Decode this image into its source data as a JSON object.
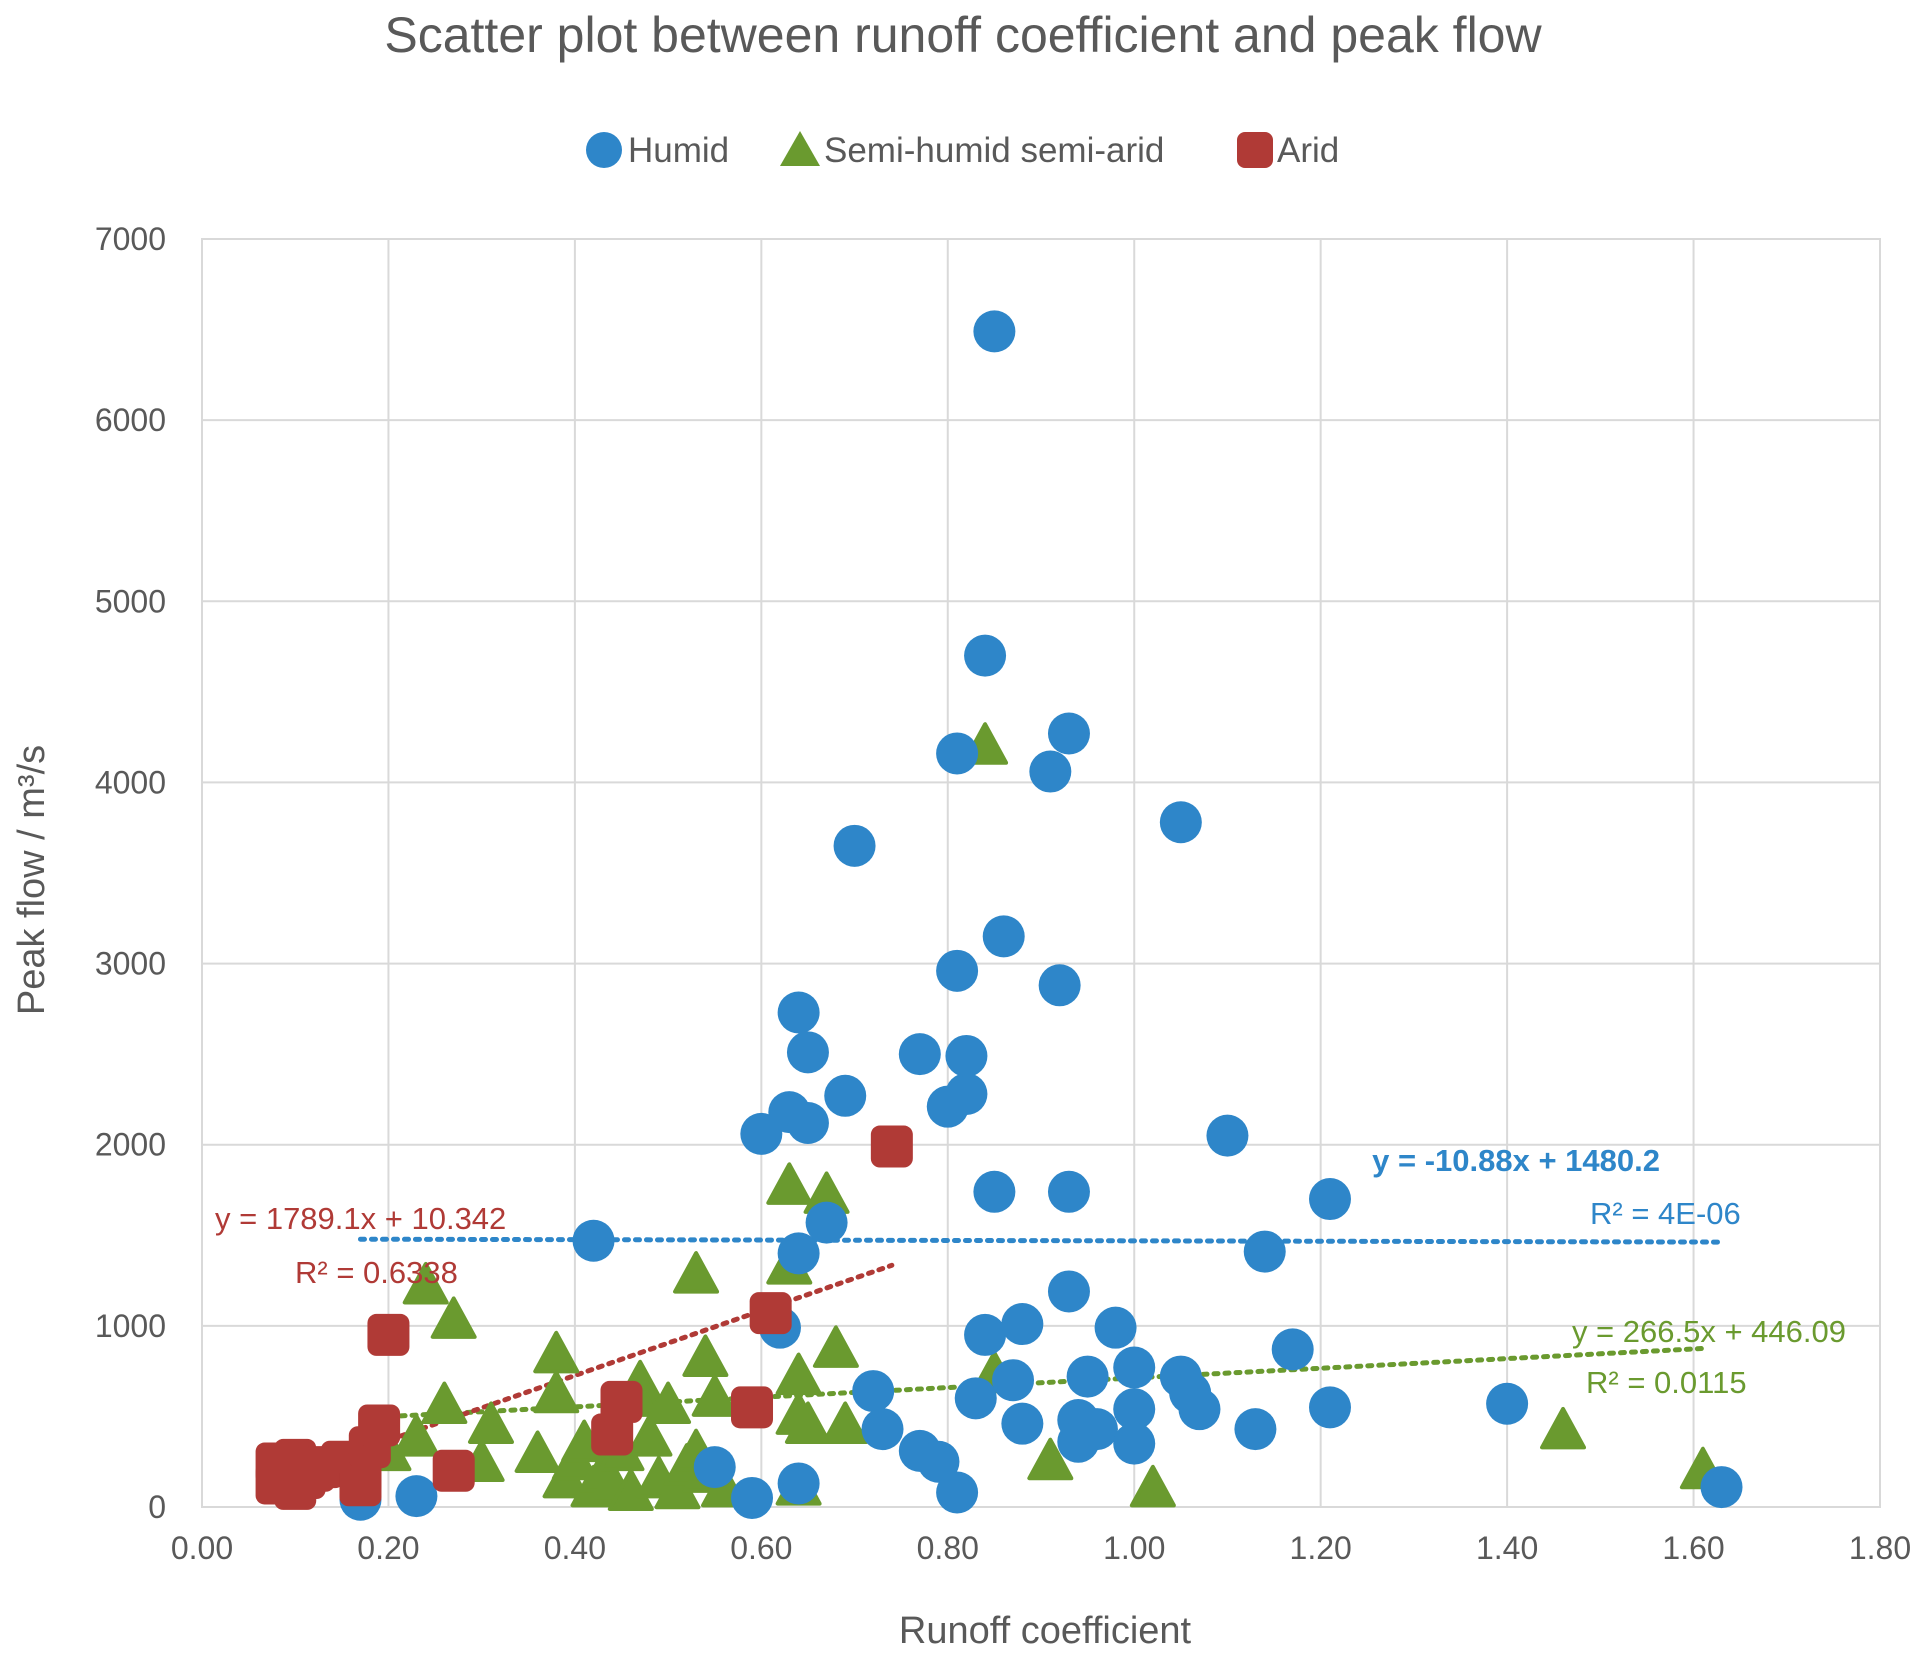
{
  "chart_data": {
    "type": "scatter",
    "title": "Scatter plot between runoff coefficient and peak flow",
    "xlabel": "Runoff coefficient",
    "ylabel": "Peak flow / m³/s",
    "xlim": [
      0,
      1.8
    ],
    "ylim": [
      0,
      7000
    ],
    "x_ticks": [
      "0.00",
      "0.20",
      "0.40",
      "0.60",
      "0.80",
      "1.00",
      "1.20",
      "1.40",
      "1.60",
      "1.80"
    ],
    "y_ticks": [
      "0",
      "1000",
      "2000",
      "3000",
      "4000",
      "5000",
      "6000",
      "7000"
    ],
    "grid": true,
    "legend_position": "top-center",
    "series": [
      {
        "name": "Humid",
        "marker": "circle",
        "color": "#2E86C9",
        "points": [
          [
            0.17,
            40
          ],
          [
            0.23,
            60
          ],
          [
            0.42,
            1470
          ],
          [
            0.55,
            220
          ],
          [
            0.59,
            50
          ],
          [
            0.6,
            2060
          ],
          [
            0.62,
            990
          ],
          [
            0.63,
            2180
          ],
          [
            0.64,
            130
          ],
          [
            0.64,
            2730
          ],
          [
            0.65,
            2510
          ],
          [
            0.65,
            2120
          ],
          [
            0.64,
            1400
          ],
          [
            0.67,
            1570
          ],
          [
            0.69,
            2270
          ],
          [
            0.7,
            3650
          ],
          [
            0.72,
            640
          ],
          [
            0.73,
            430
          ],
          [
            0.77,
            2500
          ],
          [
            0.77,
            310
          ],
          [
            0.79,
            250
          ],
          [
            0.8,
            2210
          ],
          [
            0.81,
            4160
          ],
          [
            0.81,
            2960
          ],
          [
            0.81,
            80
          ],
          [
            0.82,
            2280
          ],
          [
            0.82,
            2490
          ],
          [
            0.83,
            600
          ],
          [
            0.84,
            4700
          ],
          [
            0.84,
            950
          ],
          [
            0.85,
            1740
          ],
          [
            0.85,
            6490
          ],
          [
            0.86,
            3150
          ],
          [
            0.87,
            700
          ],
          [
            0.88,
            1010
          ],
          [
            0.88,
            460
          ],
          [
            0.91,
            4060
          ],
          [
            0.92,
            2880
          ],
          [
            0.93,
            4270
          ],
          [
            0.93,
            1740
          ],
          [
            0.93,
            1190
          ],
          [
            0.94,
            480
          ],
          [
            0.94,
            360
          ],
          [
            0.95,
            720
          ],
          [
            0.96,
            430
          ],
          [
            0.98,
            990
          ],
          [
            1.0,
            770
          ],
          [
            1.0,
            540
          ],
          [
            1.0,
            350
          ],
          [
            1.05,
            3780
          ],
          [
            1.05,
            720
          ],
          [
            1.06,
            630
          ],
          [
            1.07,
            540
          ],
          [
            1.1,
            2050
          ],
          [
            1.13,
            430
          ],
          [
            1.14,
            1410
          ],
          [
            1.17,
            870
          ],
          [
            1.21,
            1700
          ],
          [
            1.21,
            550
          ],
          [
            1.4,
            570
          ],
          [
            1.63,
            110
          ]
        ],
        "trendline": {
          "equation": "y = -10.88x + 1480.2",
          "r_squared": "R² = 4E-06",
          "slope": -10.88,
          "intercept": 1480.2,
          "x_range": [
            0.17,
            1.63
          ]
        }
      },
      {
        "name": "Semi-humid semi-arid",
        "marker": "triangle",
        "color": "#6A9A2F",
        "points": [
          [
            0.2,
            300
          ],
          [
            0.23,
            380
          ],
          [
            0.24,
            1220
          ],
          [
            0.26,
            560
          ],
          [
            0.27,
            1030
          ],
          [
            0.3,
            240
          ],
          [
            0.31,
            450
          ],
          [
            0.36,
            290
          ],
          [
            0.38,
            840
          ],
          [
            0.38,
            620
          ],
          [
            0.39,
            150
          ],
          [
            0.4,
            250
          ],
          [
            0.41,
            350
          ],
          [
            0.42,
            100
          ],
          [
            0.43,
            180
          ],
          [
            0.44,
            120
          ],
          [
            0.45,
            300
          ],
          [
            0.46,
            80
          ],
          [
            0.47,
            680
          ],
          [
            0.47,
            600
          ],
          [
            0.48,
            380
          ],
          [
            0.49,
            150
          ],
          [
            0.5,
            560
          ],
          [
            0.51,
            90
          ],
          [
            0.52,
            220
          ],
          [
            0.53,
            1280
          ],
          [
            0.53,
            300
          ],
          [
            0.54,
            820
          ],
          [
            0.54,
            180
          ],
          [
            0.55,
            600
          ],
          [
            0.56,
            100
          ],
          [
            0.63,
            1770
          ],
          [
            0.63,
            1330
          ],
          [
            0.64,
            110
          ],
          [
            0.64,
            720
          ],
          [
            0.64,
            500
          ],
          [
            0.65,
            450
          ],
          [
            0.67,
            1720
          ],
          [
            0.68,
            870
          ],
          [
            0.69,
            450
          ],
          [
            0.84,
            4200
          ],
          [
            0.85,
            730
          ],
          [
            0.91,
            250
          ],
          [
            1.02,
            100
          ],
          [
            1.46,
            420
          ],
          [
            1.61,
            200
          ]
        ],
        "trendline": {
          "equation": "y = 266.5x + 446.09",
          "r_squared": "R² = 0.0115",
          "slope": 266.5,
          "intercept": 446.09,
          "x_range": [
            0.19,
            1.61
          ]
        }
      },
      {
        "name": "Arid",
        "marker": "square",
        "color": "#B03A36",
        "points": [
          [
            0.08,
            240
          ],
          [
            0.08,
            130
          ],
          [
            0.09,
            190
          ],
          [
            0.1,
            100
          ],
          [
            0.1,
            260
          ],
          [
            0.11,
            160
          ],
          [
            0.12,
            200
          ],
          [
            0.13,
            220
          ],
          [
            0.15,
            250
          ],
          [
            0.17,
            120
          ],
          [
            0.17,
            180
          ],
          [
            0.18,
            330
          ],
          [
            0.19,
            450
          ],
          [
            0.2,
            950
          ],
          [
            0.27,
            200
          ],
          [
            0.44,
            400
          ],
          [
            0.45,
            580
          ],
          [
            0.59,
            550
          ],
          [
            0.61,
            1070
          ],
          [
            0.74,
            1990
          ]
        ],
        "trendline": {
          "equation": "y = 1789.1x + 10.342",
          "r_squared": "R² = 0.6338",
          "slope": 1789.1,
          "intercept": 10.342,
          "x_range": [
            0.18,
            0.74
          ]
        }
      }
    ]
  }
}
